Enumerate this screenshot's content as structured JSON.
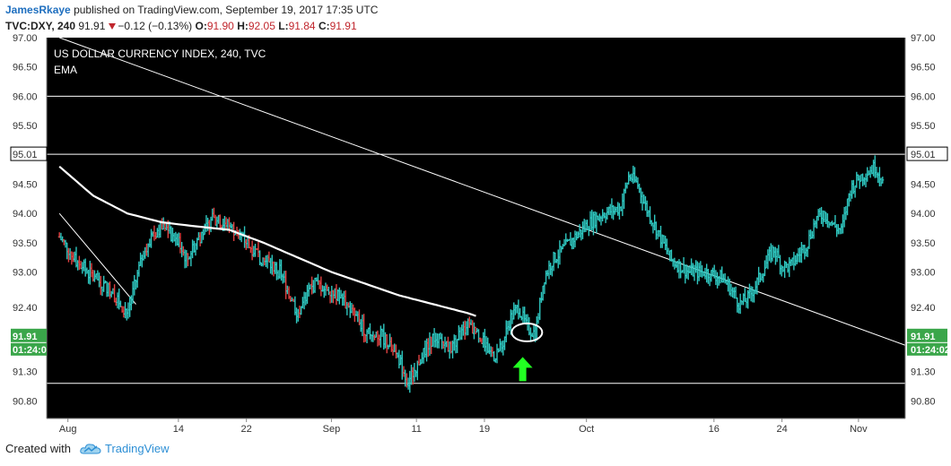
{
  "header": {
    "author": "JamesRkaye",
    "published_text": "published on TradingView.com, September 19, 2017 17:35 UTC"
  },
  "ohlc": {
    "symbol": "TVC:DXY, 240",
    "last": "91.91",
    "change": "−0.12 (−0.13%)",
    "o_label": "O:",
    "o": "91.90",
    "h_label": "H:",
    "h": "92.05",
    "l_label": "L:",
    "l": "91.84",
    "c_label": "C:",
    "c": "91.91"
  },
  "footer": {
    "created_with": "Created with",
    "brand": "TradingView"
  },
  "chart_data": {
    "type": "line",
    "title": "US DOLLAR CURRENCY INDEX, 240, TVC",
    "indicator": "EMA",
    "ylim": [
      90.5,
      97.0
    ],
    "y_ticks": [
      {
        "label": "97.00",
        "value": 97.0
      },
      {
        "label": "96.50",
        "value": 96.5
      },
      {
        "label": "96.00",
        "value": 96.0
      },
      {
        "label": "95.50",
        "value": 95.5
      },
      {
        "label": "95.01",
        "value": 95.01,
        "highlight": true
      },
      {
        "label": "94.50",
        "value": 94.5
      },
      {
        "label": "94.00",
        "value": 94.0
      },
      {
        "label": "93.50",
        "value": 93.5
      },
      {
        "label": "93.00",
        "value": 93.0
      },
      {
        "label": "92.40",
        "value": 92.4
      },
      {
        "label": "91.91",
        "value": 91.91,
        "badge": true
      },
      {
        "label": "91.30",
        "value": 91.3
      },
      {
        "label": "90.80",
        "value": 90.8
      }
    ],
    "last_price_badge": "91.91",
    "countdown_left": "01:24:0",
    "countdown_right": "01:24:02",
    "x_ticks": [
      {
        "label": "Aug",
        "day": 1
      },
      {
        "label": "14",
        "day": 14
      },
      {
        "label": "22",
        "day": 22
      },
      {
        "label": "Sep",
        "day": 32
      },
      {
        "label": "11",
        "day": 42
      },
      {
        "label": "19",
        "day": 50
      },
      {
        "label": "Oct",
        "day": 62
      },
      {
        "label": "16",
        "day": 77
      },
      {
        "label": "24",
        "day": 85
      },
      {
        "label": "Nov",
        "day": 94
      }
    ],
    "xlim": [
      -1.5,
      99.5
    ],
    "price_series": {
      "name": "DXY",
      "color": "#2fc7c0",
      "down_color": "#e04040",
      "points": [
        [
          0,
          93.6
        ],
        [
          2,
          93.2
        ],
        [
          4,
          92.9
        ],
        [
          6,
          92.7
        ],
        [
          8,
          92.3
        ],
        [
          10,
          93.4
        ],
        [
          12,
          93.8
        ],
        [
          14,
          93.5
        ],
        [
          15,
          93.2
        ],
        [
          16,
          93.5
        ],
        [
          18,
          93.9
        ],
        [
          20,
          93.8
        ],
        [
          22,
          93.5
        ],
        [
          24,
          93.2
        ],
        [
          26,
          93.0
        ],
        [
          28,
          92.3
        ],
        [
          30,
          92.8
        ],
        [
          32,
          92.7
        ],
        [
          34,
          92.4
        ],
        [
          36,
          92.0
        ],
        [
          38,
          91.9
        ],
        [
          40,
          91.5
        ],
        [
          41,
          91.1
        ],
        [
          42,
          91.4
        ],
        [
          44,
          91.9
        ],
        [
          46,
          91.7
        ],
        [
          48,
          92.1
        ],
        [
          50,
          91.8
        ],
        [
          51,
          91.55
        ],
        [
          52,
          91.7
        ],
        [
          53,
          92.2
        ],
        [
          54,
          92.4
        ],
        [
          55,
          92.05
        ],
        [
          56,
          91.95
        ],
        [
          57,
          92.9
        ],
        [
          58,
          93.2
        ],
        [
          60,
          93.5
        ],
        [
          62,
          93.8
        ],
        [
          64,
          94.0
        ],
        [
          66,
          94.1
        ],
        [
          67,
          94.65
        ],
        [
          68,
          94.5
        ],
        [
          69,
          94.1
        ],
        [
          70,
          93.8
        ],
        [
          71,
          93.5
        ],
        [
          72,
          93.2
        ],
        [
          74,
          93.0
        ],
        [
          76,
          93.0
        ],
        [
          78,
          92.9
        ],
        [
          79,
          92.7
        ],
        [
          80,
          92.45
        ],
        [
          81,
          92.55
        ],
        [
          82,
          92.8
        ],
        [
          83,
          93.1
        ],
        [
          84,
          93.4
        ],
        [
          85,
          93.1
        ],
        [
          86,
          93.1
        ],
        [
          87,
          93.3
        ],
        [
          88,
          93.5
        ],
        [
          89,
          93.9
        ],
        [
          90,
          94.0
        ],
        [
          91,
          93.8
        ],
        [
          92,
          93.7
        ],
        [
          93,
          94.4
        ],
        [
          94,
          94.6
        ],
        [
          95,
          94.7
        ],
        [
          96,
          94.8
        ],
        [
          97,
          94.5
        ]
      ]
    },
    "ema_series": {
      "name": "EMA",
      "color": "#ffffff",
      "points": [
        [
          0,
          94.8
        ],
        [
          4,
          94.3
        ],
        [
          8,
          94.0
        ],
        [
          12,
          93.85
        ],
        [
          16,
          93.78
        ],
        [
          20,
          93.72
        ],
        [
          24,
          93.5
        ],
        [
          28,
          93.25
        ],
        [
          32,
          93.0
        ],
        [
          36,
          92.8
        ],
        [
          40,
          92.6
        ],
        [
          44,
          92.45
        ],
        [
          48,
          92.3
        ],
        [
          49,
          92.25
        ]
      ]
    },
    "trendlines": [
      {
        "points": [
          [
            0,
            97.0
          ],
          [
            99.5,
            91.75
          ]
        ],
        "color": "#ffffff"
      },
      {
        "points": [
          [
            0,
            94.0
          ],
          [
            9,
            92.45
          ]
        ],
        "color": "#ffffff"
      }
    ],
    "horizontal_lines": [
      96.0,
      95.01,
      91.1
    ],
    "annotations": {
      "circle": {
        "day": 55,
        "value": 91.97
      },
      "arrow": {
        "day": 54.5,
        "value": 91.55,
        "color": "#22ff22"
      }
    }
  }
}
